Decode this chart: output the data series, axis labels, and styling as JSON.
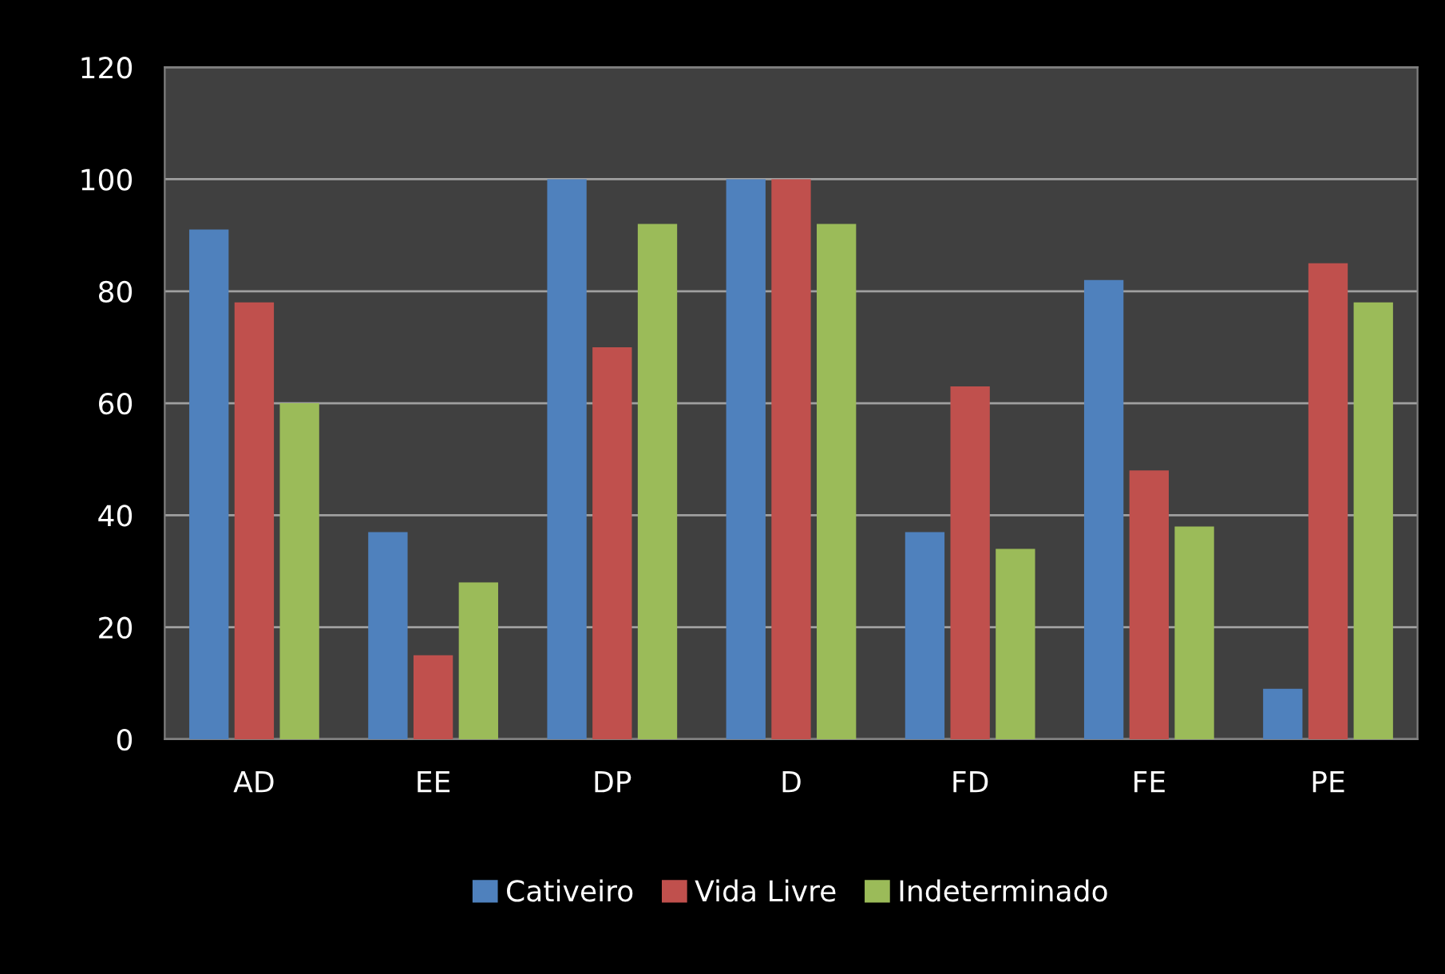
{
  "chart_data": {
    "type": "bar",
    "categories": [
      "AD",
      "EE",
      "DP",
      "D",
      "FD",
      "FE",
      "PE"
    ],
    "series": [
      {
        "name": "Cativeiro",
        "color": "#4f81bd",
        "values": [
          91,
          37,
          100,
          100,
          37,
          82,
          9
        ]
      },
      {
        "name": "Vida Livre",
        "color": "#c0504d",
        "values": [
          78,
          15,
          70,
          100,
          63,
          48,
          85
        ]
      },
      {
        "name": "Indeterminado",
        "color": "#9bbb59",
        "values": [
          60,
          28,
          92,
          92,
          34,
          38,
          78
        ]
      }
    ],
    "ylim": [
      0,
      120
    ],
    "yticks": [
      0,
      20,
      40,
      60,
      80,
      100,
      120
    ],
    "grid": "y",
    "legend": "bottom"
  }
}
